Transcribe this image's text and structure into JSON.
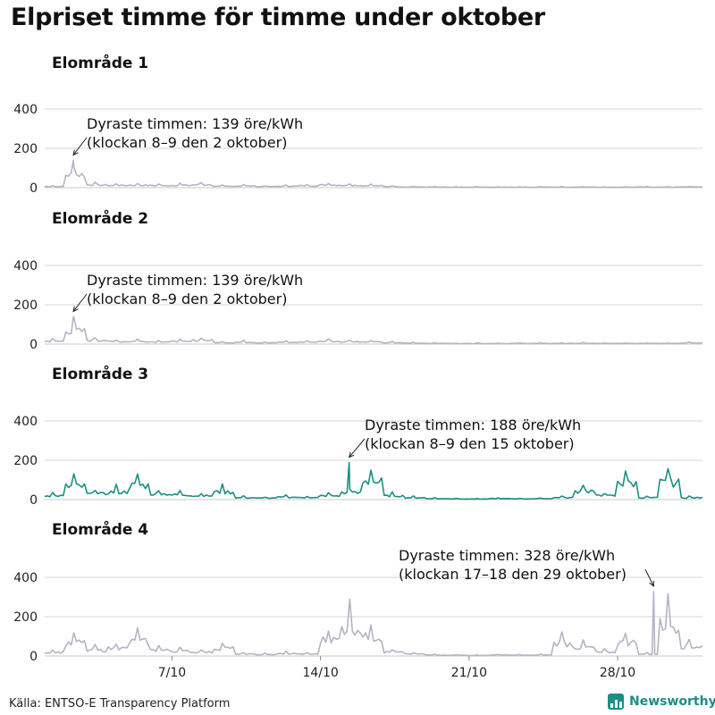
{
  "title": "Elpriset timme för timme under oktober",
  "source": "Källa: ENTSO-E Transparency Platform",
  "brand": "Newsworthy",
  "colors": {
    "default_line": "#b5b3c4",
    "highlight_line": "#1a9080",
    "gridline": "#d4d4d4",
    "brand": "#1a8f84"
  },
  "chart_data": [
    {
      "type": "line",
      "title": "Elområde 1",
      "color": "#b5b3c4",
      "ylim": [
        0,
        400
      ],
      "yticks": [
        0,
        200,
        400
      ],
      "grid": true,
      "annotation": {
        "line1": "Dyraste timmen: 139 öre/kWh",
        "line2": "(klockan 8–9 den 2 oktober)",
        "day": 2.35,
        "value": 139
      },
      "daily_values": [
        12,
        139,
        28,
        24,
        26,
        22,
        25,
        30,
        14,
        18,
        12,
        16,
        20,
        28,
        24,
        20,
        12,
        8,
        6,
        5,
        6,
        5,
        6,
        6,
        6,
        7,
        5,
        6,
        7,
        6,
        8
      ]
    },
    {
      "type": "line",
      "title": "Elområde 2",
      "color": "#b5b3c4",
      "ylim": [
        0,
        400
      ],
      "yticks": [
        0,
        200,
        400
      ],
      "grid": true,
      "annotation": {
        "line1": "Dyraste timmen: 139 öre/kWh",
        "line2": "(klockan 8–9 den 2 oktober)",
        "day": 2.35,
        "value": 139
      },
      "daily_values": [
        30,
        139,
        40,
        26,
        28,
        24,
        26,
        40,
        16,
        20,
        14,
        18,
        22,
        30,
        26,
        22,
        14,
        10,
        8,
        6,
        7,
        6,
        7,
        7,
        7,
        8,
        6,
        7,
        8,
        7,
        12
      ]
    },
    {
      "type": "line",
      "title": "Elområde 3",
      "color": "#1a9080",
      "ylim": [
        0,
        400
      ],
      "yticks": [
        0,
        200,
        400
      ],
      "grid": true,
      "annotation": {
        "line1": "Dyraste timmen: 188 öre/kWh",
        "line2": "(klockan 8–9 den 15 oktober)",
        "day": 15.35,
        "value": 188
      },
      "daily_values": [
        40,
        140,
        60,
        80,
        150,
        60,
        50,
        40,
        80,
        20,
        15,
        25,
        20,
        40,
        70,
        188,
        40,
        20,
        10,
        8,
        6,
        10,
        8,
        10,
        20,
        90,
        40,
        170,
        20,
        180,
        20
      ]
    },
    {
      "type": "line",
      "title": "Elområde 4",
      "color": "#b5b3c4",
      "ylim": [
        0,
        400
      ],
      "yticks": [
        0,
        200,
        400
      ],
      "grid": true,
      "xticks": [
        "7/10",
        "14/10",
        "21/10",
        "28/10"
      ],
      "xtick_days": [
        7,
        14,
        21,
        28
      ],
      "annotation": {
        "line1": "Dyraste timmen: 328 öre/kWh",
        "line2": "(klockan 17–18 den 29 oktober)",
        "day": 29.7,
        "value": 328
      },
      "daily_values": [
        40,
        140,
        60,
        80,
        150,
        60,
        50,
        40,
        80,
        20,
        15,
        25,
        20,
        170,
        300,
        200,
        40,
        20,
        10,
        8,
        6,
        10,
        8,
        10,
        130,
        90,
        40,
        140,
        20,
        328,
        100
      ]
    }
  ]
}
